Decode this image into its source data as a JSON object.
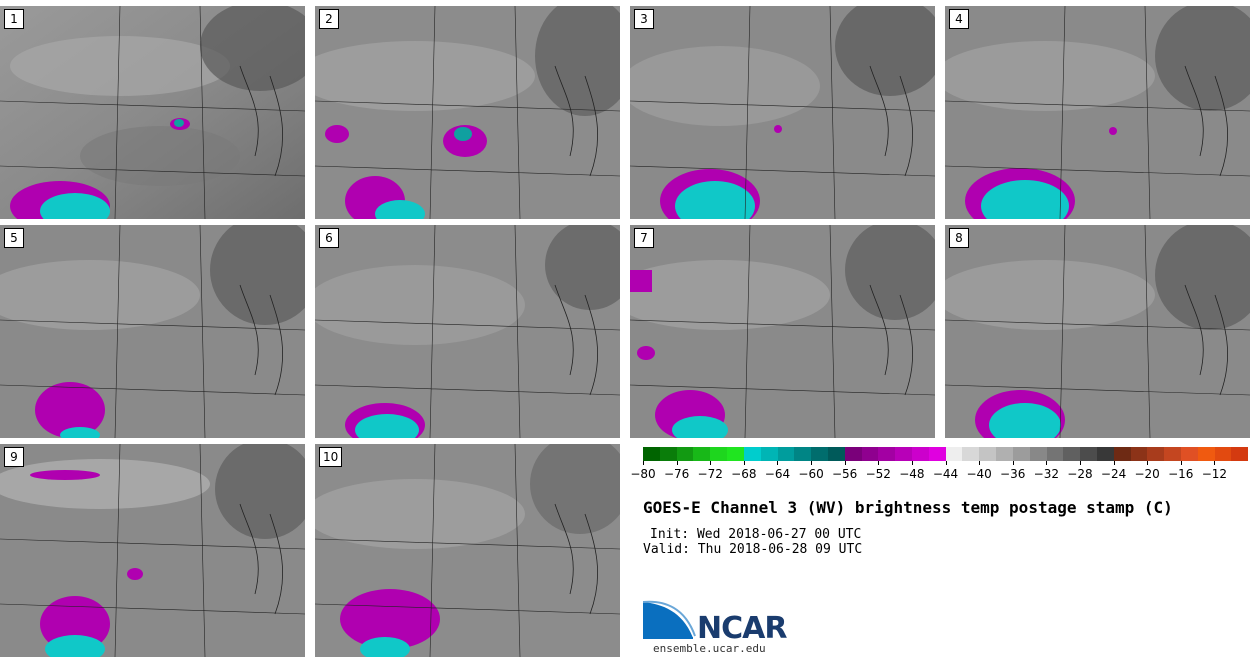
{
  "panels": [
    {
      "label": "1"
    },
    {
      "label": "2"
    },
    {
      "label": "3"
    },
    {
      "label": "4"
    },
    {
      "label": "5"
    },
    {
      "label": "6"
    },
    {
      "label": "7"
    },
    {
      "label": "8"
    },
    {
      "label": "9"
    },
    {
      "label": "10"
    }
  ],
  "colorbar": {
    "colors": [
      "#006400",
      "#0a7d0a",
      "#129a12",
      "#18b818",
      "#1ed61e",
      "#20e520",
      "#00cdcd",
      "#00b5b5",
      "#009d9d",
      "#008585",
      "#006d6d",
      "#005a5a",
      "#7a007a",
      "#8f008f",
      "#a300a3",
      "#b800b8",
      "#cc00cc",
      "#e000e0",
      "#eeeeee",
      "#d8d8d8",
      "#c4c4c4",
      "#b0b0b0",
      "#9c9c9c",
      "#888888",
      "#747474",
      "#606060",
      "#4c4c4c",
      "#383838",
      "#6e2a14",
      "#8c3318",
      "#a83c1c",
      "#c44620",
      "#e05024",
      "#f05a10",
      "#e24a10",
      "#d43a10"
    ],
    "tick_labels": [
      "−80",
      "−76",
      "−72",
      "−68",
      "−64",
      "−60",
      "−56",
      "−52",
      "−48",
      "−44",
      "−40",
      "−36",
      "−32",
      "−28",
      "−24",
      "−20",
      "−16",
      "−12"
    ]
  },
  "title": "GOES-E Channel 3 (WV) brightness temp postage stamp (C)",
  "init": "Init: Wed 2018-06-27 00 UTC",
  "valid": "Valid: Thu 2018-06-28 09 UTC",
  "logo": {
    "text": "NCAR",
    "url": "ensemble.ucar.edu"
  }
}
